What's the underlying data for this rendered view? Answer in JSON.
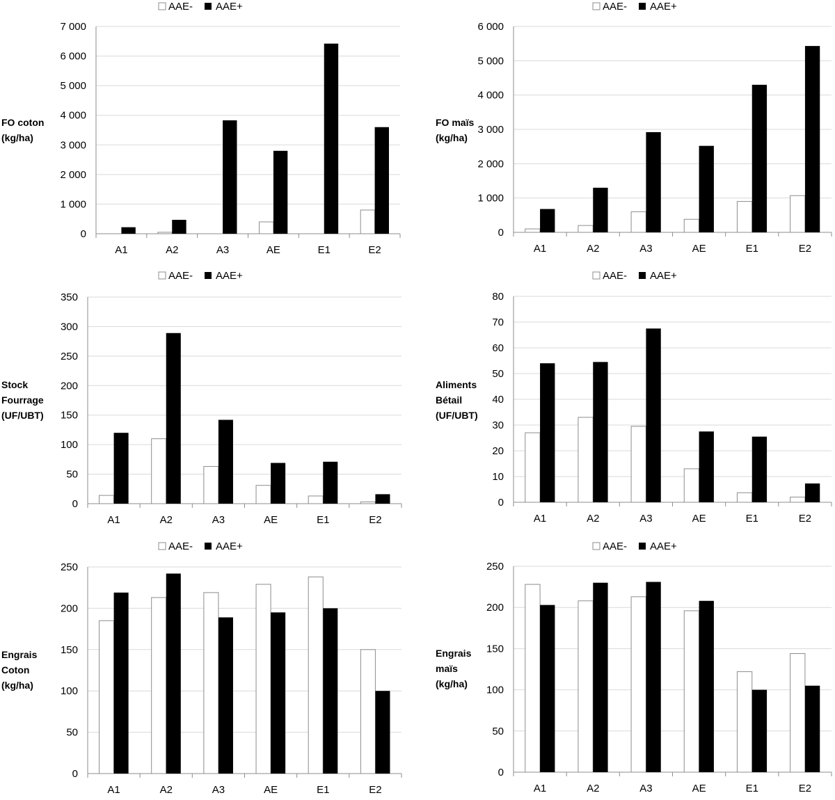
{
  "legend": {
    "neg": "AAE-",
    "pos": "AAE+"
  },
  "colors": {
    "neg_fill": "#ffffff",
    "neg_stroke": "#8c8c8c",
    "pos_fill": "#000000",
    "grid": "#d9d9d9",
    "axis": "#8c8c8c"
  },
  "chart_data": [
    {
      "type": "bar",
      "ylabel_lines": [
        "FO coton",
        "(kg/ha)"
      ],
      "categories": [
        "A1",
        "A2",
        "A3",
        "AE",
        "E1",
        "E2"
      ],
      "ylim": [
        0,
        7000
      ],
      "yticks": [
        0,
        1000,
        2000,
        3000,
        4000,
        5000,
        6000,
        7000
      ],
      "ytick_labels": [
        "0",
        "1 000",
        "2 000",
        "3 000",
        "4 000",
        "5 000",
        "6 000",
        "7 000"
      ],
      "grid": true,
      "legend_position": "top",
      "series": [
        {
          "name": "AAE-",
          "values": [
            0,
            50,
            0,
            400,
            0,
            800
          ]
        },
        {
          "name": "AAE+",
          "values": [
            220,
            470,
            3830,
            2800,
            6420,
            3600
          ]
        }
      ]
    },
    {
      "type": "bar",
      "ylabel_lines": [
        "FO maïs",
        "(kg/ha)"
      ],
      "categories": [
        "A1",
        "A2",
        "A3",
        "AE",
        "E1",
        "E2"
      ],
      "ylim": [
        0,
        6000
      ],
      "yticks": [
        0,
        1000,
        2000,
        3000,
        4000,
        5000,
        6000
      ],
      "ytick_labels": [
        "0",
        "1 000",
        "2 000",
        "3 000",
        "4 000",
        "5 000",
        "6 000"
      ],
      "grid": true,
      "legend_position": "top",
      "series": [
        {
          "name": "AAE-",
          "values": [
            100,
            200,
            600,
            380,
            900,
            1070
          ]
        },
        {
          "name": "AAE+",
          "values": [
            680,
            1300,
            2920,
            2520,
            4300,
            5430
          ]
        }
      ]
    },
    {
      "type": "bar",
      "ylabel_lines": [
        "Stock",
        "Fourrage",
        "(UF/UBT)"
      ],
      "categories": [
        "A1",
        "A2",
        "A3",
        "AE",
        "E1",
        "E2"
      ],
      "ylim": [
        0,
        350
      ],
      "yticks": [
        0,
        50,
        100,
        150,
        200,
        250,
        300,
        350
      ],
      "ytick_labels": [
        "0",
        "50",
        "100",
        "150",
        "200",
        "250",
        "300",
        "350"
      ],
      "grid": true,
      "legend_position": "top",
      "series": [
        {
          "name": "AAE-",
          "values": [
            14,
            110,
            63,
            31,
            13,
            3
          ]
        },
        {
          "name": "AAE+",
          "values": [
            120,
            289,
            142,
            69,
            71,
            16
          ]
        }
      ]
    },
    {
      "type": "bar",
      "ylabel_lines": [
        "Aliments",
        "Bétail",
        "(UF/UBT)"
      ],
      "categories": [
        "A1",
        "A2",
        "A3",
        "AE",
        "E1",
        "E2"
      ],
      "ylim": [
        0,
        80
      ],
      "yticks": [
        0,
        10,
        20,
        30,
        40,
        50,
        60,
        70,
        80
      ],
      "ytick_labels": [
        "0",
        "10",
        "20",
        "30",
        "40",
        "50",
        "60",
        "70",
        "80"
      ],
      "grid": true,
      "legend_position": "top",
      "series": [
        {
          "name": "AAE-",
          "values": [
            27,
            33,
            29.5,
            13,
            3.7,
            2
          ]
        },
        {
          "name": "AAE+",
          "values": [
            54,
            54.5,
            67.5,
            27.5,
            25.5,
            7.3
          ]
        }
      ]
    },
    {
      "type": "bar",
      "ylabel_lines": [
        "Engrais",
        "Coton",
        "(kg/ha)"
      ],
      "categories": [
        "A1",
        "A2",
        "A3",
        "AE",
        "E1",
        "E2"
      ],
      "ylim": [
        0,
        250
      ],
      "yticks": [
        0,
        50,
        100,
        150,
        200,
        250
      ],
      "ytick_labels": [
        "0",
        "50",
        "100",
        "150",
        "200",
        "250"
      ],
      "grid": true,
      "legend_position": "top",
      "series": [
        {
          "name": "AAE-",
          "values": [
            185,
            213,
            219,
            229,
            238,
            150
          ]
        },
        {
          "name": "AAE+",
          "values": [
            219,
            242,
            189,
            195,
            200,
            100
          ]
        }
      ]
    },
    {
      "type": "bar",
      "ylabel_lines": [
        "Engrais",
        "maïs",
        "(kg/ha)"
      ],
      "categories": [
        "A1",
        "A2",
        "A3",
        "AE",
        "E1",
        "E2"
      ],
      "ylim": [
        0,
        250
      ],
      "yticks": [
        0,
        50,
        100,
        150,
        200,
        250
      ],
      "ytick_labels": [
        "0",
        "50",
        "100",
        "150",
        "200",
        "250"
      ],
      "grid": true,
      "legend_position": "top",
      "series": [
        {
          "name": "AAE-",
          "values": [
            228,
            208,
            213,
            196,
            122,
            144
          ]
        },
        {
          "name": "AAE+",
          "values": [
            203,
            230,
            231,
            208,
            100,
            105
          ]
        }
      ]
    }
  ]
}
